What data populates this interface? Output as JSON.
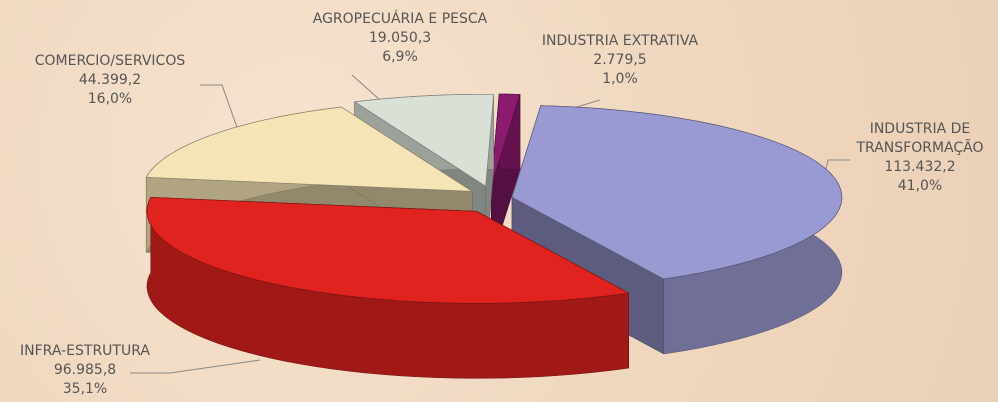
{
  "chart_data": {
    "type": "pie",
    "categories": [
      "INDUSTRIA DE TRANSFORMAÇÃO",
      "INFRA-ESTRUTURA",
      "COMERCIO/SERVICOS",
      "AGROPECUÁRIA E PESCA",
      "INDUSTRIA EXTRATIVA"
    ],
    "values": [
      113432.2,
      96985.8,
      44399.2,
      19050.3,
      2779.5
    ],
    "value_labels": [
      "113.432,2",
      "96.985,8",
      "44.399,2",
      "19.050,3",
      "2.779,5"
    ],
    "percentages": [
      41.0,
      35.1,
      16.0,
      6.9,
      1.0
    ],
    "percentage_labels": [
      "41,0%",
      "35,1%",
      "16,0%",
      "6,9%",
      "1,0%"
    ],
    "colors": [
      "#9a9ad2",
      "#e0231e",
      "#f4e4b6",
      "#d9e0d6",
      "#8c1a6e"
    ]
  }
}
